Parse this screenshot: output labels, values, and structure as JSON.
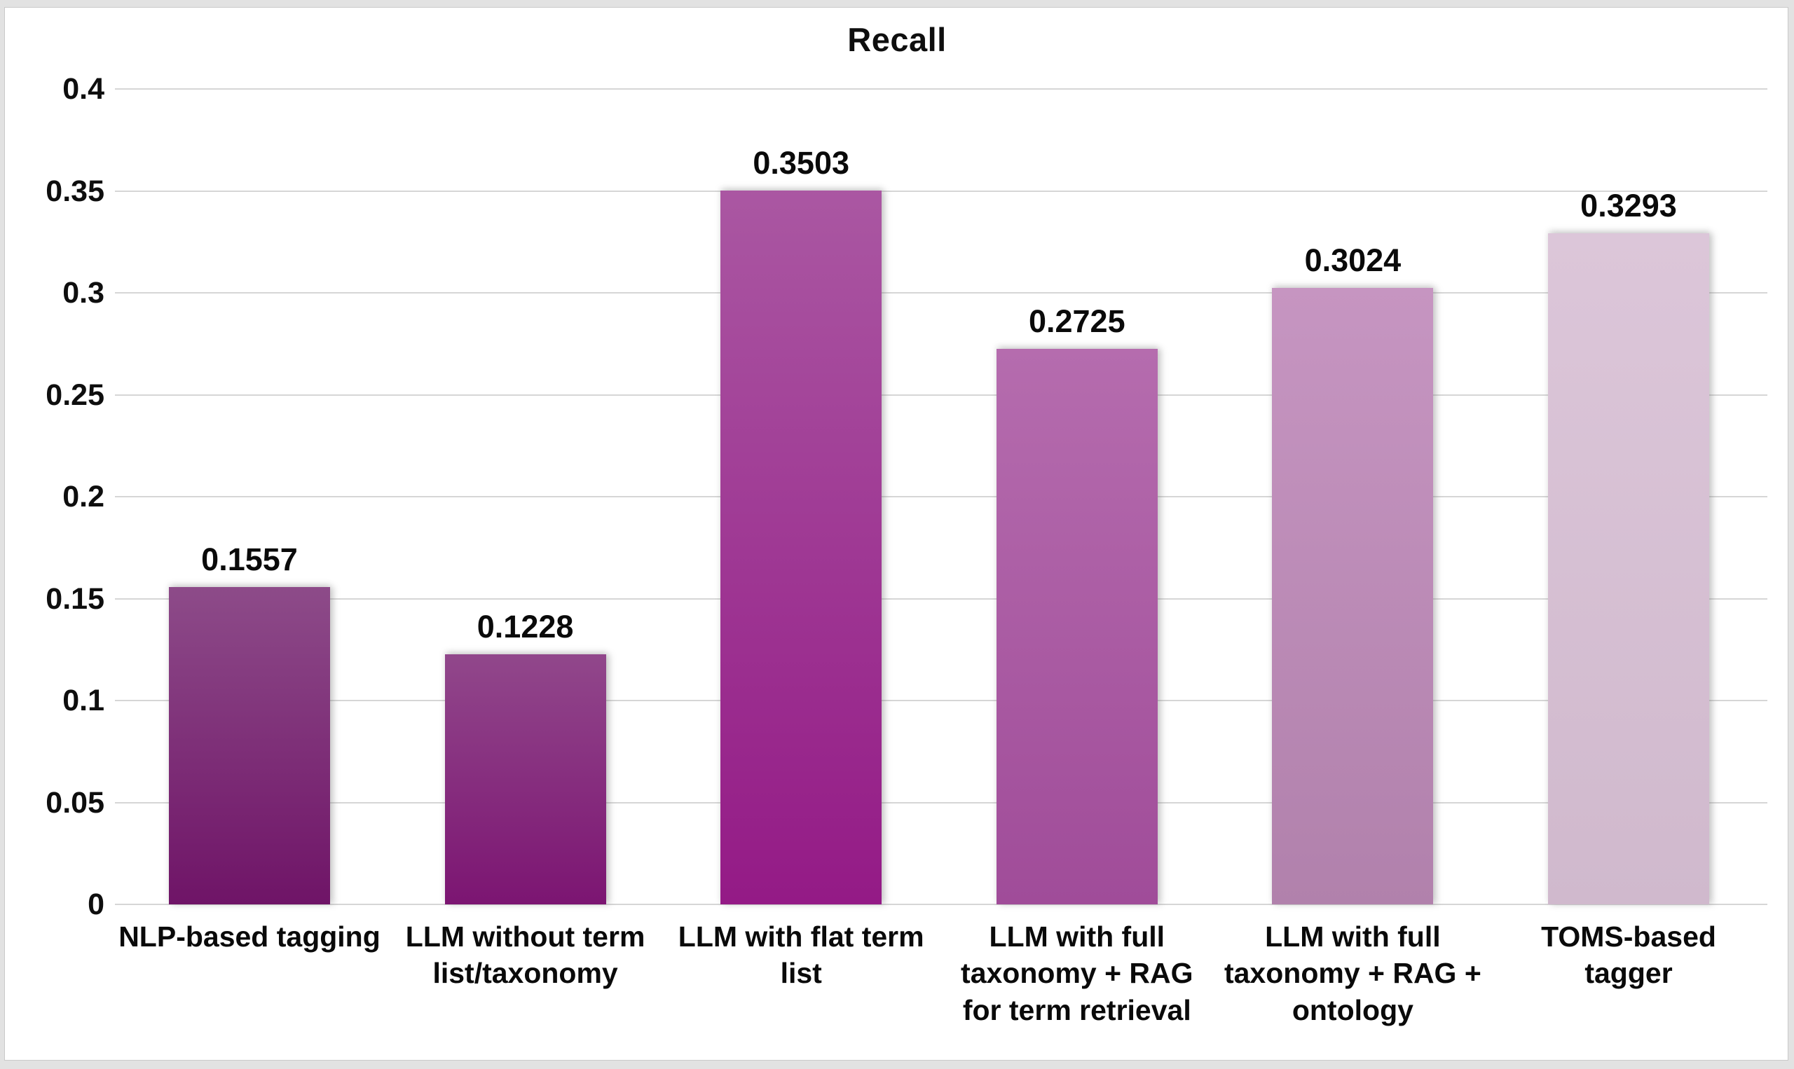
{
  "title": "Recall",
  "chart_data": {
    "type": "bar",
    "title": "Recall",
    "categories": [
      "NLP-based tagging",
      "LLM without term list/taxonomy",
      "LLM with flat term list",
      "LLM with full taxonomy + RAG for term retrieval",
      "LLM with full taxonomy + RAG + ontology",
      "TOMS-based tagger"
    ],
    "category_lines": [
      [
        "NLP-based tagging"
      ],
      [
        "LLM without term",
        "list/taxonomy"
      ],
      [
        "LLM with flat term",
        "list"
      ],
      [
        "LLM with full",
        "taxonomy + RAG",
        "for term retrieval"
      ],
      [
        "LLM with full",
        "taxonomy + RAG +",
        "ontology"
      ],
      [
        "TOMS-based",
        "tagger"
      ]
    ],
    "values": [
      0.1557,
      0.1228,
      0.3503,
      0.2725,
      0.3024,
      0.3293
    ],
    "value_labels": [
      "0.1557",
      "0.1228",
      "0.3503",
      "0.2725",
      "0.3024",
      "0.3293"
    ],
    "xlabel": "",
    "ylabel": "",
    "ylim": [
      0,
      0.4
    ],
    "y_ticks": [
      0,
      0.05,
      0.1,
      0.15,
      0.2,
      0.25,
      0.3,
      0.35,
      0.4
    ],
    "y_tick_labels": [
      "0",
      "0.05",
      "0.1",
      "0.15",
      "0.2",
      "0.25",
      "0.3",
      "0.35",
      "0.4"
    ],
    "grid": "horizontal-only",
    "legend": "none",
    "bar_gradients": [
      {
        "top": "#8d4b89",
        "bottom": "#6f1467"
      },
      {
        "top": "#91478b",
        "bottom": "#7c1572"
      },
      {
        "top": "#aa57a2",
        "bottom": "#941a86"
      },
      {
        "top": "#b56cae",
        "bottom": "#a04c99"
      },
      {
        "top": "#c695c1",
        "bottom": "#b181ac"
      },
      {
        "top": "#dcc6d9",
        "bottom": "#d0b9cd"
      }
    ],
    "colors": {
      "grid": "#d6d6d6",
      "text": "#0e0e0e",
      "canvas_background": "#ffffff",
      "page_background": "#e2e2e2",
      "canvas_border": "#c9c9c9"
    }
  }
}
